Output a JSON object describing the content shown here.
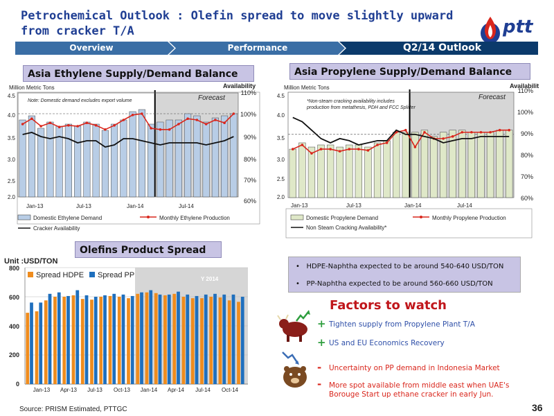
{
  "header": {
    "title": "Petrochemical Outlook :  Olefin spread to move slightly upward from cracker T/A",
    "logo_text": "ptt"
  },
  "nav": {
    "tabs": [
      "Overview",
      "Performance",
      "Q2/14 Outlook"
    ]
  },
  "colors": {
    "brand_blue": "#1f3e93",
    "nav_blue": "#3a6ea5",
    "active_tab": "#0b3a6b",
    "red": "#d9261c",
    "hdpe_orange": "#ef8c1e",
    "pp_blue": "#1f6fbd"
  },
  "ethylene": {
    "section_title": "Asia Ethylene Supply/Demand Balance",
    "left_axis_label": "Million Metric Tons",
    "right_axis_label": "Availability",
    "note": "Note: Domestic demand excludes export volume",
    "forecast_label": "Forecast",
    "left_ticks": [
      "4.5",
      "4.0",
      "3.5",
      "3.0",
      "2.5",
      "2.0"
    ],
    "right_ticks": [
      "110%",
      "100%",
      "90%",
      "80%",
      "70%",
      "60%"
    ],
    "x_ticks": [
      "Jan-13",
      "Jul-13",
      "Jan-14",
      "Jul-14"
    ],
    "legend": [
      "Domestic Ethylene Demand",
      "Monthly Ethylene Production",
      "Cracker Availability"
    ]
  },
  "propylene": {
    "section_title": "Asia Propylene Supply/Demand Balance",
    "left_axis_label": "Million Metric Tons",
    "right_axis_label": "Availability",
    "note_line1": "*Non-steam cracking availability includes",
    "note_line2": "production from metathesis, PDH and FCC Splitter",
    "forecast_label": "Forecast",
    "left_ticks": [
      "4.5",
      "4.0",
      "3.5",
      "3.0",
      "2.5",
      "2.0"
    ],
    "right_ticks": [
      "110%",
      "100%",
      "90%",
      "80%",
      "70%",
      "60%"
    ],
    "x_ticks": [
      "Jan-13",
      "Jul-13",
      "Jan-14",
      "Jul-14"
    ],
    "legend": [
      "Domestic Propylene Demand",
      "Monthly Propylene Production",
      "Non Steam Cracking Availability*"
    ]
  },
  "spread": {
    "section_title": "Olefins Product Spread",
    "unit_label": "Unit :USD/TON",
    "year_label": "Y 2014",
    "legend": [
      "Spread HDPE",
      "Spread PP"
    ],
    "y_ticks": [
      "800",
      "600",
      "400",
      "200",
      "0"
    ],
    "x_ticks": [
      "Jan-13",
      "Apr-13",
      "Jul-13",
      "Oct-13",
      "Jan-14",
      "Apr-14",
      "Jul-14",
      "Oct-14"
    ]
  },
  "bullets": [
    "HDPE-Naphtha expected to be around 540-640 USD/TON",
    "PP-Naphtha expected to be around 560-660 USD/TON"
  ],
  "factors": {
    "title": "Factors to watch",
    "positive": [
      "Tighten supply from Propylene Plant T/A",
      "US and EU Economics Recovery"
    ],
    "negative": [
      "Uncertainty on PP demand in Indonesia Market",
      "More spot available  from middle east when UAE's",
      "Borouge Start up ethane cracker in early Jun."
    ]
  },
  "footer": {
    "source": "Source: PRISM Estimated,  PTTGC",
    "page": "36"
  },
  "chart_data": [
    {
      "type": "bar",
      "title": "Asia Ethylene Supply/Demand Balance",
      "ylabel": "Million Metric Tons",
      "y2label": "Availability",
      "ylim": [
        2.0,
        4.5
      ],
      "y2lim": [
        60,
        110
      ],
      "forecast_from": "Apr-14",
      "categories": [
        "Jan-13",
        "Feb-13",
        "Mar-13",
        "Apr-13",
        "May-13",
        "Jun-13",
        "Jul-13",
        "Aug-13",
        "Sep-13",
        "Oct-13",
        "Nov-13",
        "Dec-13",
        "Jan-14",
        "Feb-14",
        "Mar-14",
        "Apr-14",
        "May-14",
        "Jun-14",
        "Jul-14",
        "Aug-14",
        "Sep-14",
        "Oct-14",
        "Nov-14",
        "Dec-14"
      ],
      "series": [
        {
          "name": "Domestic Ethylene Demand",
          "kind": "bar",
          "axis": "left",
          "values": [
            3.85,
            3.95,
            3.65,
            3.8,
            3.7,
            3.75,
            3.7,
            3.8,
            3.75,
            3.6,
            3.75,
            3.85,
            4.05,
            4.1,
            3.75,
            3.8,
            3.85,
            3.85,
            4.0,
            3.95,
            3.8,
            3.9,
            3.95,
            4.0
          ]
        },
        {
          "name": "Monthly Ethylene Production",
          "kind": "line",
          "axis": "left",
          "values": [
            3.75,
            3.88,
            3.7,
            3.78,
            3.68,
            3.72,
            3.7,
            3.78,
            3.72,
            3.62,
            3.72,
            3.85,
            3.97,
            4.0,
            3.65,
            3.62,
            3.62,
            3.75,
            3.88,
            3.85,
            3.75,
            3.85,
            3.78,
            4.0
          ]
        },
        {
          "name": "Cracker Availability",
          "kind": "line",
          "axis": "right",
          "values": [
            90,
            91,
            89,
            88,
            89,
            88,
            86,
            87,
            87,
            84,
            85,
            88,
            88,
            87,
            86,
            85,
            86,
            86,
            86,
            86,
            85,
            86,
            87,
            89
          ]
        }
      ]
    },
    {
      "type": "bar",
      "title": "Asia Propylene Supply/Demand Balance",
      "ylabel": "Million Metric Tons",
      "y2label": "Availability",
      "ylim": [
        2.0,
        4.5
      ],
      "y2lim": [
        60,
        110
      ],
      "forecast_from": "Feb-14",
      "categories": [
        "Jan-13",
        "Feb-13",
        "Mar-13",
        "Apr-13",
        "May-13",
        "Jun-13",
        "Jul-13",
        "Aug-13",
        "Sep-13",
        "Oct-13",
        "Nov-13",
        "Dec-13",
        "Jan-14",
        "Feb-14",
        "Mar-14",
        "Apr-14",
        "May-14",
        "Jun-14",
        "Jul-14",
        "Aug-14",
        "Sep-14",
        "Oct-14",
        "Nov-14",
        "Dec-14"
      ],
      "series": [
        {
          "name": "Domestic Propylene Demand",
          "kind": "bar",
          "axis": "left",
          "values": [
            3.15,
            3.3,
            3.2,
            3.25,
            3.25,
            3.2,
            3.25,
            3.25,
            3.2,
            3.3,
            3.35,
            3.55,
            3.55,
            3.55,
            3.6,
            3.45,
            3.55,
            3.6,
            3.6,
            3.55,
            3.55,
            3.55,
            3.6,
            3.6
          ]
        },
        {
          "name": "Monthly Propylene Production",
          "kind": "line",
          "axis": "left",
          "values": [
            3.15,
            3.25,
            3.05,
            3.15,
            3.15,
            3.1,
            3.15,
            3.15,
            3.12,
            3.25,
            3.3,
            3.55,
            3.6,
            3.2,
            3.55,
            3.4,
            3.4,
            3.45,
            3.55,
            3.55,
            3.55,
            3.55,
            3.6,
            3.6
          ]
        },
        {
          "name": "Non Steam Cracking Availability*",
          "kind": "line",
          "axis": "right",
          "values": [
            98,
            96,
            92,
            88,
            86,
            88,
            87,
            85,
            86,
            87,
            87,
            92,
            90,
            90,
            89,
            88,
            86,
            87,
            88,
            88,
            89,
            89,
            89,
            89
          ]
        }
      ]
    },
    {
      "type": "bar",
      "title": "Olefins Product Spread",
      "ylabel": "Unit :USD/TON",
      "ylim": [
        0,
        800
      ],
      "highlight": "Y 2014",
      "categories": [
        "Jan-13",
        "Feb-13",
        "Mar-13",
        "Apr-13",
        "May-13",
        "Jun-13",
        "Jul-13",
        "Aug-13",
        "Sep-13",
        "Oct-13",
        "Nov-13",
        "Dec-13",
        "Jan-14",
        "Feb-14",
        "Mar-14",
        "Apr-14",
        "May-14",
        "Jun-14",
        "Jul-14",
        "Aug-14",
        "Sep-14",
        "Oct-14",
        "Nov-14",
        "Dec-14"
      ],
      "series": [
        {
          "name": "Spread HDPE",
          "values": [
            490,
            500,
            575,
            600,
            600,
            610,
            585,
            580,
            600,
            605,
            600,
            590,
            620,
            630,
            625,
            610,
            620,
            600,
            590,
            590,
            600,
            595,
            575,
            565
          ]
        },
        {
          "name": "Spread PP",
          "values": [
            560,
            560,
            620,
            630,
            605,
            645,
            610,
            600,
            610,
            620,
            615,
            605,
            630,
            645,
            615,
            615,
            635,
            615,
            605,
            615,
            620,
            615,
            615,
            600
          ]
        }
      ]
    }
  ]
}
